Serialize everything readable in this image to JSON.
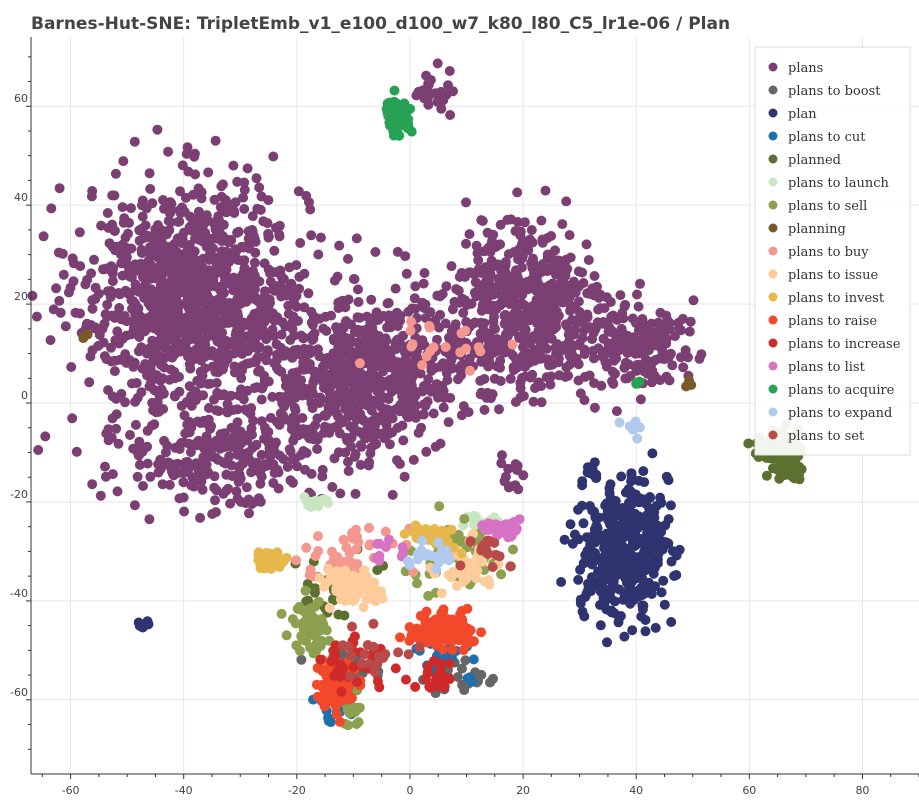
{
  "chart_data": {
    "type": "scatter",
    "title": "Barnes-Hut-SNE: TripletEmb_v1_e100_d100_w7_k80_l80_C5_lr1e-06 / Plan",
    "xlabel": "",
    "ylabel": "",
    "xlim": [
      -67,
      90
    ],
    "ylim": [
      -75,
      74
    ],
    "x_ticks": [
      -60,
      -40,
      -20,
      0,
      20,
      40,
      60,
      80
    ],
    "y_ticks": [
      60,
      40,
      20,
      0,
      -20,
      -40,
      -60
    ],
    "grid": true,
    "legend_position": "top-right",
    "series": [
      {
        "name": "plans",
        "color": "#7b3f73",
        "clusters": [
          [
            -38,
            22,
            18,
            20,
            1100
          ],
          [
            -8,
            5,
            16,
            14,
            650
          ],
          [
            20,
            18,
            14,
            16,
            600
          ],
          [
            -33,
            -10,
            18,
            10,
            300
          ],
          [
            40,
            12,
            8,
            8,
            160
          ],
          [
            5,
            63,
            3,
            4,
            30
          ],
          [
            18,
            -15,
            3,
            3,
            12
          ]
        ]
      },
      {
        "name": "plans to boost",
        "color": "#666666",
        "clusters": [
          [
            -10,
            -53,
            6,
            4,
            25
          ],
          [
            8,
            -55,
            6,
            4,
            25
          ]
        ]
      },
      {
        "name": "plan",
        "color": "#2f3470",
        "clusters": [
          [
            38,
            -30,
            7,
            12,
            420
          ],
          [
            -47,
            -45,
            1,
            0.6,
            12
          ],
          [
            32,
            -14,
            2,
            2,
            10
          ]
        ]
      },
      {
        "name": "plans to cut",
        "color": "#1f6fad",
        "clusters": [
          [
            -13,
            -60,
            4,
            5,
            30
          ],
          [
            6,
            -52,
            6,
            4,
            25
          ]
        ]
      },
      {
        "name": "planned",
        "color": "#5c7030",
        "clusters": [
          [
            66,
            -10,
            4,
            4,
            100
          ],
          [
            -12,
            -37,
            6,
            6,
            40
          ]
        ]
      },
      {
        "name": "plans to launch",
        "color": "#c8e6bf",
        "clusters": [
          [
            -17,
            -20,
            2,
            1,
            15
          ],
          [
            12,
            -24,
            4,
            2,
            15
          ]
        ]
      },
      {
        "name": "plans to sell",
        "color": "#8da04f",
        "clusters": [
          [
            -18,
            -45,
            3,
            5,
            60
          ],
          [
            8,
            -30,
            7,
            6,
            70
          ],
          [
            -10,
            -62,
            2,
            3,
            15
          ]
        ]
      },
      {
        "name": "planning",
        "color": "#7a5a26",
        "clusters": [
          [
            -58,
            14,
            1,
            1,
            3
          ],
          [
            50,
            4,
            1,
            1,
            3
          ]
        ]
      },
      {
        "name": "plans to buy",
        "color": "#f4978e",
        "clusters": [
          [
            -10,
            -30,
            8,
            5,
            40
          ],
          [
            6,
            12,
            10,
            6,
            20
          ]
        ]
      },
      {
        "name": "plans to issue",
        "color": "#fdcc9a",
        "clusters": [
          [
            -10,
            -37,
            5,
            3,
            90
          ],
          [
            10,
            -33,
            5,
            4,
            50
          ]
        ]
      },
      {
        "name": "plans to invest",
        "color": "#e6b84c",
        "clusters": [
          [
            -25,
            -32,
            2.5,
            1.2,
            80
          ],
          [
            4,
            -27,
            4,
            3,
            30
          ]
        ]
      },
      {
        "name": "plans to raise",
        "color": "#f2492a",
        "clusters": [
          [
            -13,
            -57,
            3,
            4,
            120
          ],
          [
            6,
            -46,
            5,
            3,
            120
          ]
        ]
      },
      {
        "name": "plans to increase",
        "color": "#cf2a2a",
        "clusters": [
          [
            -11,
            -54,
            5,
            6,
            30
          ],
          [
            4,
            -55,
            5,
            3,
            20
          ]
        ]
      },
      {
        "name": "plans to list",
        "color": "#d572c4",
        "clusters": [
          [
            16,
            -25,
            3,
            2,
            30
          ],
          [
            -4,
            -30,
            4,
            3,
            10
          ]
        ]
      },
      {
        "name": "plans to acquire",
        "color": "#27a154",
        "clusters": [
          [
            -2,
            58,
            2,
            3,
            60
          ],
          [
            40,
            4,
            0.8,
            0.5,
            4
          ]
        ]
      },
      {
        "name": "plans to expand",
        "color": "#b0c9ec",
        "clusters": [
          [
            3,
            -30,
            4,
            3,
            20
          ],
          [
            40,
            -5,
            2,
            2,
            8
          ]
        ]
      },
      {
        "name": "plans to set",
        "color": "#b94a4a",
        "clusters": [
          [
            -6,
            -50,
            6,
            4,
            20
          ],
          [
            14,
            -30,
            4,
            3,
            20
          ]
        ]
      }
    ]
  }
}
